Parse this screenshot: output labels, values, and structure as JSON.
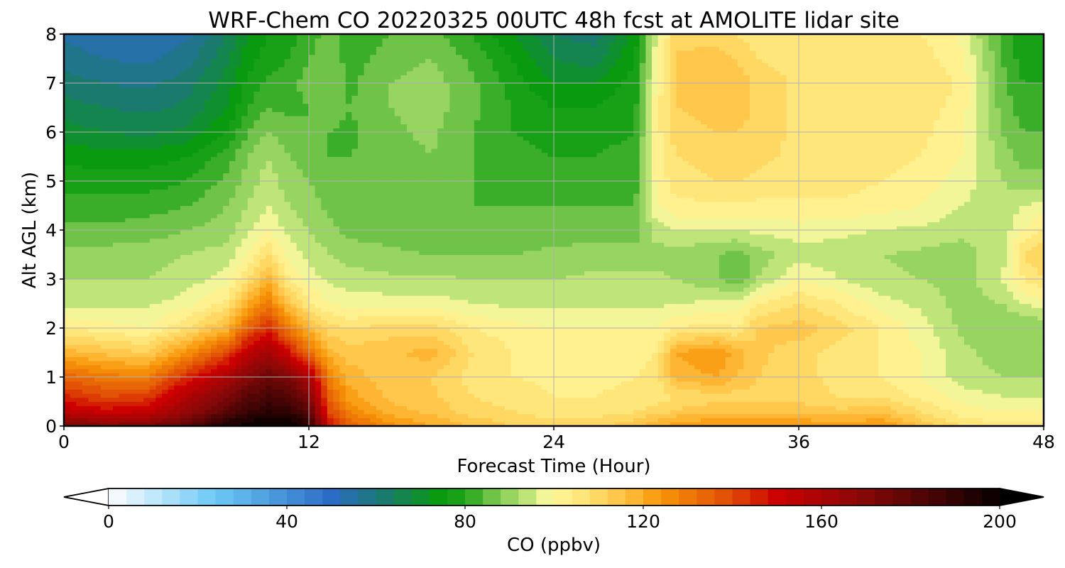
{
  "chart_data": {
    "type": "heatmap",
    "title": "WRF-Chem CO  20220325 00UTC 48h fcst at AMOLITE lidar site",
    "xlabel": "Forecast Time (Hour)",
    "ylabel": "Alt AGL (km)",
    "xlim": [
      0,
      48
    ],
    "ylim": [
      0,
      8
    ],
    "x_ticks": [
      0,
      12,
      24,
      36,
      48
    ],
    "y_ticks": [
      0,
      1,
      2,
      3,
      4,
      5,
      6,
      7,
      8
    ],
    "grid": true,
    "z_unit_label": "CO  (ppbv)",
    "x": [
      0,
      2,
      4,
      6,
      8,
      9,
      10,
      11,
      12,
      13,
      14,
      16,
      18,
      20,
      22,
      24,
      26,
      28,
      29,
      30,
      32,
      33,
      34,
      36,
      38,
      40,
      42,
      44,
      46,
      47,
      48
    ],
    "y": [
      0,
      0.15,
      0.3,
      0.6,
      1.0,
      1.5,
      2.0,
      2.5,
      3.0,
      3.5,
      4.0,
      4.5,
      5.0,
      5.5,
      6.0,
      6.5,
      7.0,
      7.5,
      8.0
    ],
    "z": [
      [
        175,
        170,
        172,
        180,
        195,
        198,
        200,
        200,
        190,
        150,
        135,
        125,
        120,
        115,
        112,
        110,
        110,
        115,
        120,
        122,
        125,
        125,
        124,
        124,
        122,
        125,
        115,
        108,
        105,
        105,
        105
      ],
      [
        165,
        160,
        162,
        172,
        190,
        195,
        198,
        198,
        188,
        145,
        132,
        122,
        118,
        113,
        110,
        108,
        108,
        112,
        115,
        118,
        120,
        120,
        120,
        120,
        118,
        120,
        112,
        105,
        102,
        102,
        102
      ],
      [
        155,
        150,
        152,
        165,
        180,
        188,
        192,
        190,
        180,
        140,
        128,
        118,
        115,
        110,
        108,
        106,
        106,
        108,
        110,
        113,
        115,
        115,
        115,
        115,
        113,
        115,
        108,
        102,
        100,
        100,
        100
      ],
      [
        145,
        140,
        142,
        158,
        172,
        180,
        185,
        182,
        172,
        135,
        122,
        115,
        113,
        108,
        106,
        104,
        104,
        105,
        106,
        108,
        110,
        110,
        110,
        110,
        108,
        108,
        103,
        98,
        96,
        96,
        96
      ],
      [
        135,
        130,
        128,
        145,
        160,
        170,
        176,
        172,
        160,
        128,
        118,
        113,
        112,
        106,
        104,
        103,
        103,
        104,
        105,
        118,
        120,
        116,
        112,
        110,
        106,
        104,
        100,
        94,
        92,
        92,
        92
      ],
      [
        118,
        115,
        112,
        125,
        140,
        155,
        162,
        150,
        132,
        118,
        114,
        115,
        118,
        108,
        104,
        102,
        102,
        103,
        104,
        120,
        124,
        118,
        113,
        110,
        106,
        104,
        100,
        93,
        90,
        90,
        90
      ],
      [
        104,
        102,
        100,
        108,
        118,
        135,
        145,
        130,
        118,
        110,
        108,
        110,
        110,
        104,
        102,
        100,
        100,
        100,
        100,
        104,
        106,
        104,
        112,
        114,
        110,
        104,
        98,
        91,
        88,
        88,
        88
      ],
      [
        95,
        95,
        95,
        98,
        106,
        120,
        130,
        115,
        105,
        100,
        98,
        98,
        98,
        96,
        95,
        95,
        95,
        95,
        95,
        96,
        97,
        98,
        104,
        108,
        104,
        98,
        95,
        90,
        92,
        96,
        98
      ],
      [
        92,
        92,
        92,
        94,
        98,
        108,
        118,
        104,
        98,
        95,
        94,
        93,
        93,
        92,
        92,
        92,
        93,
        93,
        93,
        92,
        89,
        84,
        92,
        100,
        96,
        93,
        92,
        90,
        96,
        104,
        108
      ],
      [
        90,
        90,
        90,
        92,
        94,
        100,
        108,
        98,
        95,
        92,
        90,
        89,
        88,
        88,
        88,
        89,
        90,
        90,
        90,
        90,
        88,
        86,
        90,
        94,
        94,
        92,
        91,
        90,
        95,
        108,
        112
      ],
      [
        85,
        85,
        86,
        88,
        90,
        95,
        100,
        95,
        92,
        89,
        87,
        86,
        85,
        86,
        86,
        86,
        86,
        86,
        94,
        96,
        96,
        96,
        97,
        98,
        97,
        96,
        95,
        93,
        94,
        100,
        104
      ],
      [
        82,
        82,
        82,
        84,
        88,
        92,
        96,
        92,
        90,
        87,
        85,
        84,
        84,
        84,
        84,
        84,
        84,
        84,
        99,
        103,
        103,
        103,
        103,
        103,
        103,
        102,
        100,
        96,
        93,
        96,
        98
      ],
      [
        78,
        78,
        78,
        80,
        85,
        90,
        94,
        90,
        88,
        85,
        84,
        85,
        86,
        84,
        83,
        82,
        82,
        82,
        101,
        106,
        108,
        108,
        107,
        106,
        106,
        104,
        102,
        98,
        92,
        90,
        90
      ],
      [
        75,
        74,
        74,
        76,
        82,
        88,
        92,
        88,
        86,
        84,
        84,
        86,
        88,
        84,
        82,
        80,
        80,
        82,
        102,
        108,
        110,
        110,
        109,
        107,
        107,
        106,
        104,
        100,
        90,
        86,
        86
      ],
      [
        70,
        68,
        67,
        69,
        76,
        84,
        88,
        86,
        84,
        84,
        83,
        87,
        89,
        84,
        80,
        78,
        78,
        80,
        102,
        110,
        112,
        112,
        110,
        107,
        107,
        107,
        105,
        101,
        88,
        84,
        84
      ],
      [
        66,
        64,
        63,
        65,
        72,
        80,
        84,
        83,
        84,
        86,
        84,
        88,
        90,
        85,
        80,
        76,
        76,
        79,
        102,
        112,
        114,
        114,
        111,
        107,
        107,
        108,
        106,
        102,
        86,
        82,
        82
      ],
      [
        62,
        60,
        59,
        62,
        70,
        77,
        81,
        82,
        86,
        88,
        83,
        88,
        90,
        85,
        78,
        72,
        72,
        78,
        100,
        114,
        116,
        114,
        111,
        107,
        107,
        108,
        108,
        103,
        85,
        80,
        80
      ],
      [
        58,
        56,
        55,
        58,
        67,
        74,
        78,
        80,
        84,
        87,
        82,
        86,
        88,
        83,
        76,
        68,
        66,
        76,
        98,
        113,
        114,
        112,
        108,
        106,
        106,
        106,
        106,
        101,
        84,
        78,
        78
      ],
      [
        55,
        53,
        52,
        55,
        64,
        72,
        76,
        78,
        82,
        86,
        80,
        84,
        86,
        80,
        72,
        64,
        62,
        74,
        96,
        110,
        110,
        108,
        105,
        104,
        104,
        104,
        104,
        99,
        82,
        76,
        76
      ]
    ],
    "colorbar": {
      "label": "CO  (ppbv)",
      "min": 0,
      "max": 200,
      "step": 4,
      "ticks": [
        0,
        40,
        80,
        120,
        160,
        200
      ],
      "extend": "both",
      "extend_low_color": "#ffffff",
      "extend_high_color": "#000000",
      "color_stops": [
        {
          "value": 0,
          "color": "#ffffff"
        },
        {
          "value": 24,
          "color": "#6cc8f5"
        },
        {
          "value": 50,
          "color": "#2b6cc4"
        },
        {
          "value": 62,
          "color": "#1a7a6e"
        },
        {
          "value": 74,
          "color": "#0a9a10"
        },
        {
          "value": 80,
          "color": "#1fa31a"
        },
        {
          "value": 86,
          "color": "#6fc448"
        },
        {
          "value": 94,
          "color": "#bfe478"
        },
        {
          "value": 99,
          "color": "#fff9a0"
        },
        {
          "value": 108,
          "color": "#ffe070"
        },
        {
          "value": 116,
          "color": "#ffc040"
        },
        {
          "value": 124,
          "color": "#f89508"
        },
        {
          "value": 140,
          "color": "#e04a05"
        },
        {
          "value": 150,
          "color": "#cc0000"
        },
        {
          "value": 168,
          "color": "#8c0808"
        },
        {
          "value": 200,
          "color": "#080000"
        }
      ]
    }
  }
}
